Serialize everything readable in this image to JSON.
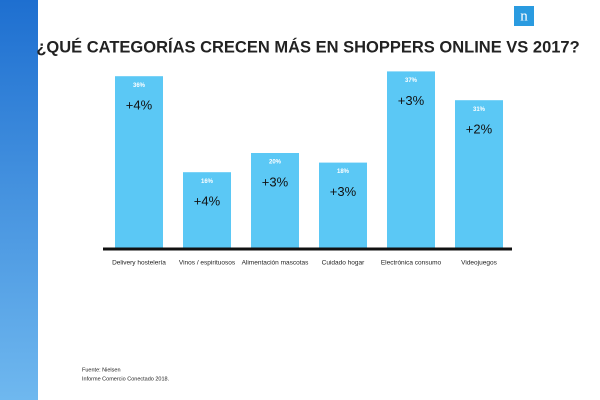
{
  "chart_data": {
    "type": "bar",
    "title": "¿QUÉ CATEGORÍAS CRECEN MÁS EN SHOPPERS ONLINE VS 2017?",
    "categories": [
      "Delivery hostelería",
      "Vinos / espirituosos",
      "Alimentación mascotas",
      "Cuidado hogar",
      "Electrónica consumo",
      "Videojuegos"
    ],
    "values": [
      36,
      16,
      20,
      18,
      37,
      31
    ],
    "value_labels": [
      "36%",
      "16%",
      "20%",
      "18%",
      "37%",
      "31%"
    ],
    "growth_labels": [
      "+4%",
      "+4%",
      "+3%",
      "+3%",
      "+3%",
      "+2%"
    ],
    "color": "#5bc8f5",
    "source": [
      "Fuente: Nielsen",
      "Informe Comercio Conectado 2018."
    ],
    "logo": "n"
  }
}
